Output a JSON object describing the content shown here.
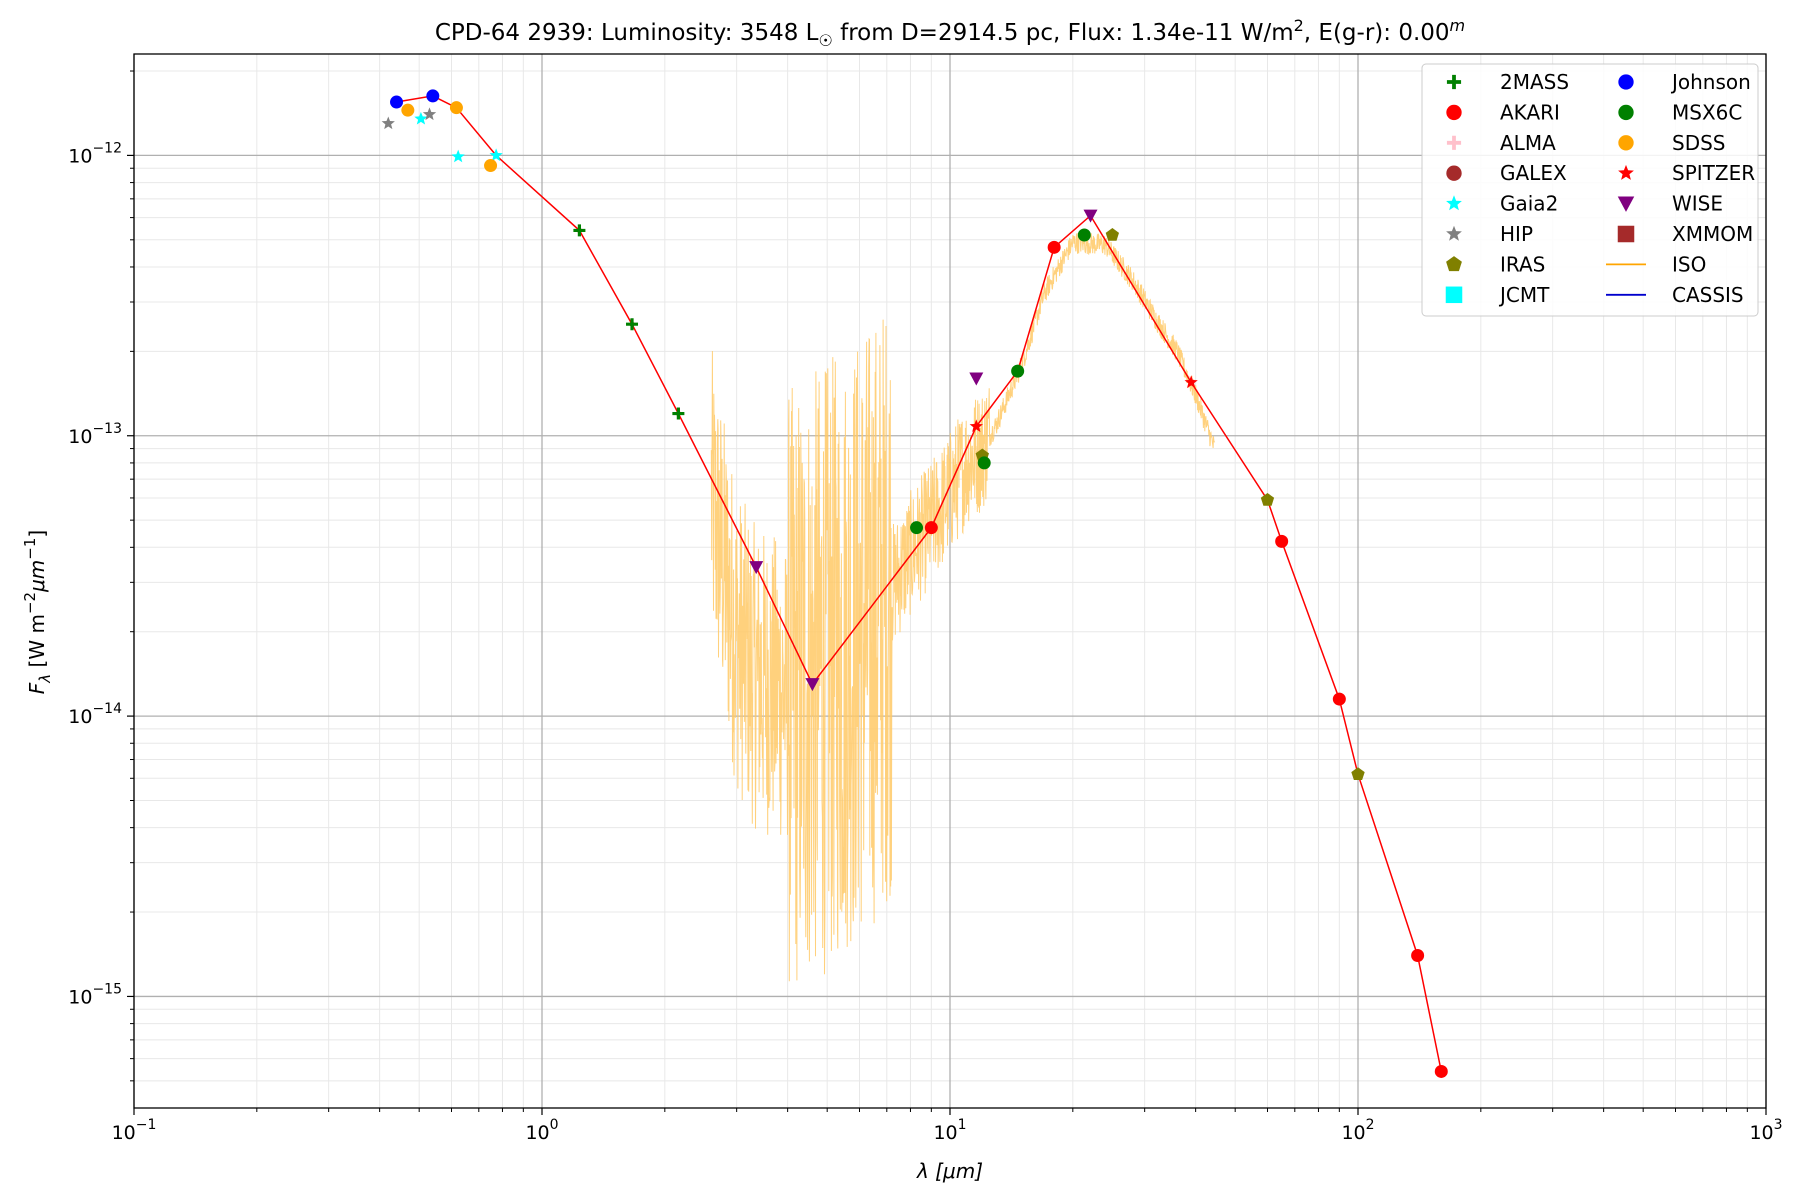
{
  "chart_data": {
    "type": "scatter",
    "title_parts": {
      "object": "CPD-64 2939:",
      "lum_prefix": "Luminosity: 3548 L",
      "lum_symbol": "☉",
      "dist": " from D=2914.5 pc, Flux: 1.34e-11 W/m",
      "flux_exp": "2",
      "ext": ", E(g-r): 0.00",
      "ext_sup": "m"
    },
    "xlabel_parts": {
      "sym": "λ",
      "unit": " [μm]"
    },
    "ylabel_parts": {
      "sym": "F",
      "sub": "λ",
      "unit1": " [W m",
      "exp1": "−2",
      "unit2": "μm",
      "exp2": "−1",
      "unit3": "]"
    },
    "x_scale": "log",
    "y_scale": "log",
    "xlim": [
      0.1,
      1000
    ],
    "ylim": [
      4e-16,
      2.3e-12
    ],
    "x_ticks": [
      {
        "value": 0.1,
        "base": "10",
        "exp": "−1"
      },
      {
        "value": 1,
        "base": "10",
        "exp": "0"
      },
      {
        "value": 10,
        "base": "10",
        "exp": "1"
      },
      {
        "value": 100,
        "base": "10",
        "exp": "2"
      },
      {
        "value": 1000,
        "base": "10",
        "exp": "3"
      }
    ],
    "y_ticks": [
      {
        "value": 1e-15,
        "base": "10",
        "exp": "−15"
      },
      {
        "value": 1e-14,
        "base": "10",
        "exp": "−14"
      },
      {
        "value": 1e-13,
        "base": "10",
        "exp": "−13"
      },
      {
        "value": 1e-12,
        "base": "10",
        "exp": "−12"
      }
    ],
    "grid": true,
    "legend_position": "top-right",
    "legend": [
      {
        "name": "2MASS",
        "color": "#008000",
        "marker": "plus"
      },
      {
        "name": "AKARI",
        "color": "#ff0000",
        "marker": "circle"
      },
      {
        "name": "ALMA",
        "color": "#ffc0cb",
        "marker": "plus"
      },
      {
        "name": "GALEX",
        "color": "#a52a2a",
        "marker": "circle"
      },
      {
        "name": "Gaia2",
        "color": "#00ffff",
        "marker": "star"
      },
      {
        "name": "HIP",
        "color": "#808080",
        "marker": "star"
      },
      {
        "name": "IRAS",
        "color": "#808000",
        "marker": "pentagon"
      },
      {
        "name": "JCMT",
        "color": "#00ffff",
        "marker": "square"
      },
      {
        "name": "Johnson",
        "color": "#0000ff",
        "marker": "circle"
      },
      {
        "name": "MSX6C",
        "color": "#008000",
        "marker": "circle"
      },
      {
        "name": "SDSS",
        "color": "#ffa500",
        "marker": "circle"
      },
      {
        "name": "SPITZER",
        "color": "#ff0000",
        "marker": "star"
      },
      {
        "name": "WISE",
        "color": "#800080",
        "marker": "triangle-down"
      },
      {
        "name": "XMMOM",
        "color": "#a52a2a",
        "marker": "square"
      },
      {
        "name": "ISO",
        "color": "#ffa500",
        "marker": "line"
      },
      {
        "name": "CASSIS",
        "color": "#0000cd",
        "marker": "line"
      }
    ],
    "series": [
      {
        "name": "2MASS",
        "color": "#008000",
        "marker": "plus",
        "x": [
          1.235,
          1.662,
          2.159
        ],
        "y": [
          5.4e-13,
          2.5e-13,
          1.2e-13
        ]
      },
      {
        "name": "AKARI",
        "color": "#ff0000",
        "marker": "circle",
        "x": [
          9.0,
          18.0,
          65.0,
          90.0,
          140.0,
          160.0
        ],
        "y": [
          4.7e-14,
          4.7e-13,
          4.2e-14,
          1.15e-14,
          1.4e-15,
          5.4e-16
        ]
      },
      {
        "name": "Gaia2",
        "color": "#00ffff",
        "marker": "star",
        "x": [
          0.505,
          0.623,
          0.772
        ],
        "y": [
          1.35e-12,
          9.9e-13,
          1e-12
        ]
      },
      {
        "name": "HIP",
        "color": "#808080",
        "marker": "star",
        "x": [
          0.42,
          0.53
        ],
        "y": [
          1.3e-12,
          1.4e-12
        ]
      },
      {
        "name": "IRAS",
        "color": "#808000",
        "marker": "pentagon",
        "x": [
          12.0,
          25.0,
          60.0,
          100.0
        ],
        "y": [
          8.5e-14,
          5.2e-13,
          5.9e-14,
          6.2e-15
        ]
      },
      {
        "name": "Johnson",
        "color": "#0000ff",
        "marker": "circle",
        "x": [
          0.44,
          0.54
        ],
        "y": [
          1.55e-12,
          1.63e-12
        ]
      },
      {
        "name": "MSX6C",
        "color": "#008000",
        "marker": "circle",
        "x": [
          8.28,
          12.13,
          14.65,
          21.34
        ],
        "y": [
          4.7e-14,
          8e-14,
          1.7e-13,
          5.2e-13
        ]
      },
      {
        "name": "SDSS",
        "color": "#ffa500",
        "marker": "circle",
        "x": [
          0.469,
          0.617,
          0.748
        ],
        "y": [
          1.45e-12,
          1.48e-12,
          9.2e-13
        ]
      },
      {
        "name": "SPITZER",
        "color": "#ff0000",
        "marker": "star",
        "x": [
          11.6,
          39.0
        ],
        "y": [
          1.08e-13,
          1.55e-13
        ]
      },
      {
        "name": "WISE",
        "color": "#800080",
        "marker": "triangle-down",
        "x": [
          3.35,
          4.6,
          11.6,
          22.1
        ],
        "y": [
          3.4e-14,
          1.3e-14,
          1.6e-13,
          6.1e-13
        ]
      }
    ],
    "sed_line": {
      "color": "#ff0000",
      "x": [
        0.44,
        0.54,
        0.617,
        0.772,
        1.235,
        1.662,
        2.159,
        3.35,
        4.6,
        9.0,
        11.6,
        14.65,
        18.0,
        22.1,
        39.0,
        60.0,
        65.0,
        90.0,
        100.0,
        140.0,
        160.0
      ],
      "y": [
        1.55e-12,
        1.63e-12,
        1.48e-12,
        1e-12,
        5.4e-13,
        2.5e-13,
        1.2e-13,
        3.4e-14,
        1.3e-14,
        4.7e-14,
        1.08e-13,
        1.7e-13,
        4.7e-13,
        6.1e-13,
        1.55e-13,
        5.9e-14,
        4.2e-14,
        1.15e-14,
        6.2e-15,
        1.4e-15,
        5.4e-16
      ]
    },
    "iso_spectrum": {
      "name": "ISO",
      "color": "#ffc966",
      "x_range": [
        2.6,
        44.5
      ]
    }
  }
}
